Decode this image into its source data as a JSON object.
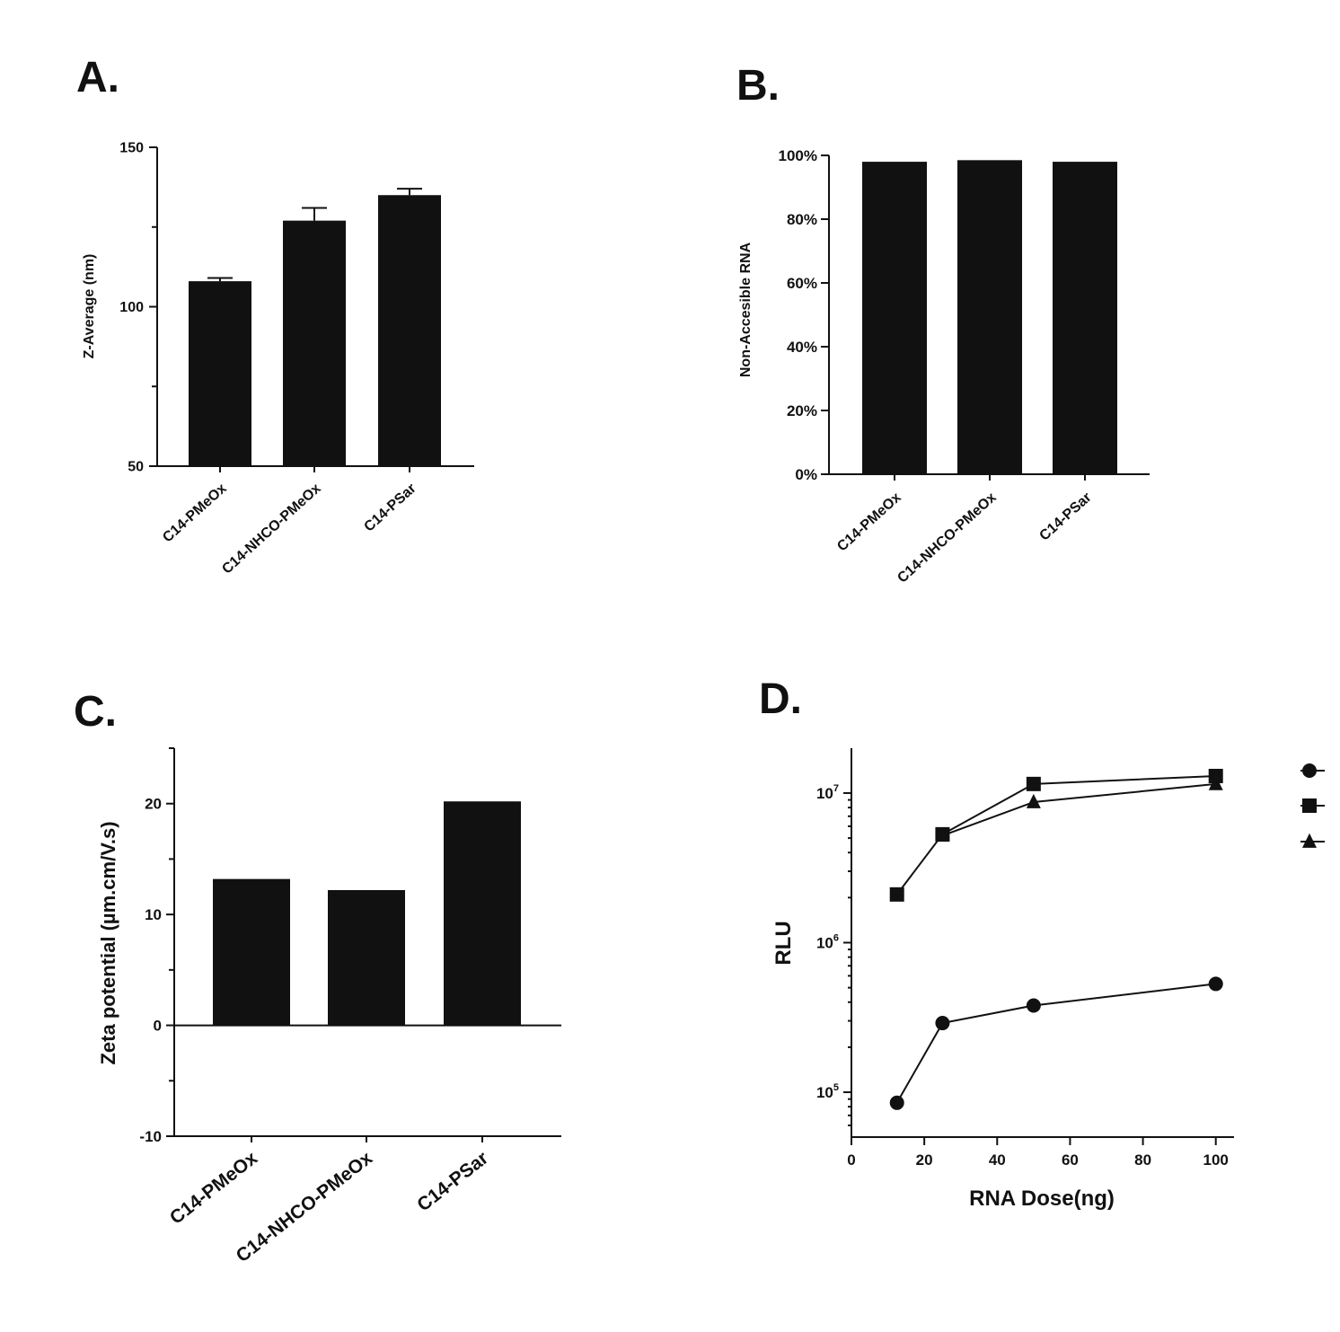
{
  "colors": {
    "ink": "#111111",
    "background": "#ffffff"
  },
  "chart_data": [
    {
      "id": "A",
      "panel_label": "A.",
      "type": "bar",
      "categories": [
        "C14-PMeOx",
        "C14-NHCO-PMeOx",
        "C14-PSar"
      ],
      "values": [
        108,
        127,
        135
      ],
      "errors": [
        1,
        4,
        2
      ],
      "ylabel": "Z-Average (nm)",
      "ylim": [
        50,
        150
      ],
      "yticks": [
        50,
        75,
        100,
        125,
        150
      ],
      "ytick_labels": [
        "50",
        "",
        "100",
        "",
        "150"
      ]
    },
    {
      "id": "B",
      "panel_label": "B.",
      "type": "bar",
      "categories": [
        "C14-PMeOx",
        "C14-NHCO-PMeOx",
        "C14-PSar"
      ],
      "values": [
        98,
        98.5,
        98
      ],
      "ylabel": "Non-Accesible RNA",
      "ylim": [
        0,
        100
      ],
      "yticks": [
        0,
        20,
        40,
        60,
        80,
        100
      ],
      "ytick_labels": [
        "0%",
        "20%",
        "40%",
        "60%",
        "80%",
        "100%"
      ]
    },
    {
      "id": "C",
      "panel_label": "C.",
      "type": "bar",
      "categories": [
        "C14-PMeOx",
        "C14-NHCO-PMeOx",
        "C14-PSar"
      ],
      "values": [
        13.2,
        12.2,
        20.2
      ],
      "ylabel": "Zeta potential (µm.cm/V.s)",
      "ylim": [
        -10,
        25
      ],
      "yticks": [
        -10,
        -5,
        0,
        5,
        10,
        15,
        20,
        25
      ],
      "ytick_labels": [
        "-10",
        "",
        "0",
        "",
        "10",
        "",
        "20",
        ""
      ]
    },
    {
      "id": "D",
      "panel_label": "D.",
      "type": "line",
      "xlabel": "RNA Dose(ng)",
      "ylabel": "RLU",
      "xlim": [
        0,
        105
      ],
      "xticks": [
        0,
        20,
        40,
        60,
        80,
        100
      ],
      "ylim_log10": [
        4.7,
        7.3
      ],
      "yticks_log10": [
        5,
        6,
        7
      ],
      "ytick_bases": [
        "10",
        "10",
        "10"
      ],
      "ytick_exps": [
        "5",
        "6",
        "7"
      ],
      "legend_position": "right",
      "series": [
        {
          "name": "",
          "marker": "circle",
          "x": [
            12.5,
            25,
            50,
            100
          ],
          "y": [
            85000,
            290000,
            380000,
            530000
          ]
        },
        {
          "name": "",
          "marker": "square",
          "x": [
            12.5,
            25,
            50,
            100
          ],
          "y": [
            2100000,
            5300000,
            11500000,
            13000000
          ]
        },
        {
          "name": "",
          "marker": "triangle",
          "x": [
            25,
            50,
            100
          ],
          "y": [
            5200000,
            8700000,
            11500000
          ]
        }
      ]
    }
  ]
}
